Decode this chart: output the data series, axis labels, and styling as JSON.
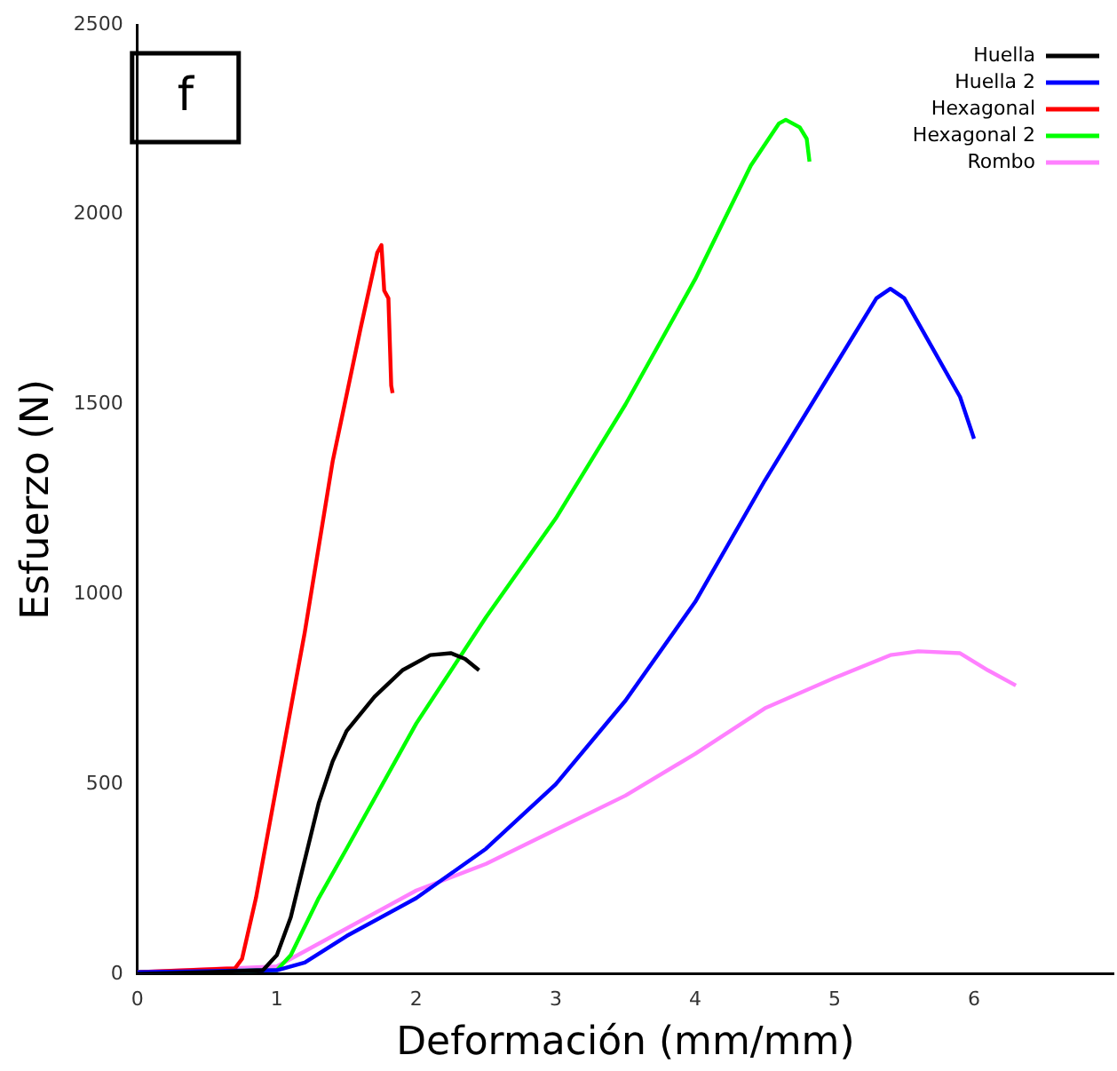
{
  "chart_data": {
    "type": "line",
    "xlabel": "Deformación (mm/mm)",
    "ylabel": "Esfuerzo (N)",
    "annotations": [
      "f"
    ],
    "xlim": [
      0,
      7
    ],
    "xticks": [
      0,
      1,
      2,
      3,
      4,
      5,
      6
    ],
    "ylim": [
      0,
      2500
    ],
    "yticks": [
      0,
      500,
      1000,
      1500,
      2000,
      2500
    ],
    "grid": false,
    "legend": "top right",
    "marker": "none",
    "line_style": "solid",
    "series": [
      {
        "name": "Huella",
        "color": "#000000",
        "x": [
          0,
          0.5,
          0.9,
          1.0,
          1.1,
          1.2,
          1.3,
          1.4,
          1.5,
          1.7,
          1.9,
          2.1,
          2.25,
          2.35,
          2.45
        ],
        "values": [
          0,
          5,
          10,
          50,
          150,
          300,
          450,
          560,
          640,
          730,
          800,
          840,
          845,
          830,
          800
        ]
      },
      {
        "name": "Huella 2",
        "color": "#0000ff",
        "x": [
          0,
          1,
          1.2,
          1.5,
          2,
          2.5,
          3,
          3.5,
          4,
          4.5,
          5,
          5.3,
          5.4,
          5.5,
          5.7,
          5.9,
          6
        ],
        "values": [
          5,
          10,
          30,
          100,
          200,
          330,
          500,
          720,
          980,
          1300,
          1600,
          1780,
          1805,
          1780,
          1650,
          1520,
          1410
        ]
      },
      {
        "name": "Hexagonal",
        "color": "#ff0000",
        "x": [
          0,
          0.7,
          0.75,
          0.85,
          1.0,
          1.2,
          1.4,
          1.6,
          1.72,
          1.75,
          1.77,
          1.8,
          1.82,
          1.83
        ],
        "values": [
          5,
          15,
          40,
          200,
          500,
          900,
          1350,
          1700,
          1900,
          1920,
          1800,
          1780,
          1550,
          1530
        ]
      },
      {
        "name": "Hexagonal 2",
        "color": "#00ff00",
        "x": [
          0,
          1.0,
          1.1,
          1.3,
          1.5,
          2,
          2.5,
          3,
          3.5,
          4,
          4.4,
          4.6,
          4.65,
          4.75,
          4.8,
          4.82
        ],
        "values": [
          5,
          10,
          50,
          200,
          330,
          660,
          940,
          1200,
          1500,
          1830,
          2130,
          2240,
          2250,
          2230,
          2200,
          2140
        ]
      },
      {
        "name": "Rombo",
        "color": "#ff80ff",
        "x": [
          0,
          1,
          1.5,
          2,
          2.5,
          3,
          3.5,
          4,
          4.5,
          5,
          5.4,
          5.6,
          5.9,
          6.1,
          6.3
        ],
        "values": [
          5,
          20,
          120,
          220,
          290,
          380,
          470,
          580,
          700,
          780,
          840,
          850,
          845,
          800,
          760
        ]
      }
    ]
  }
}
